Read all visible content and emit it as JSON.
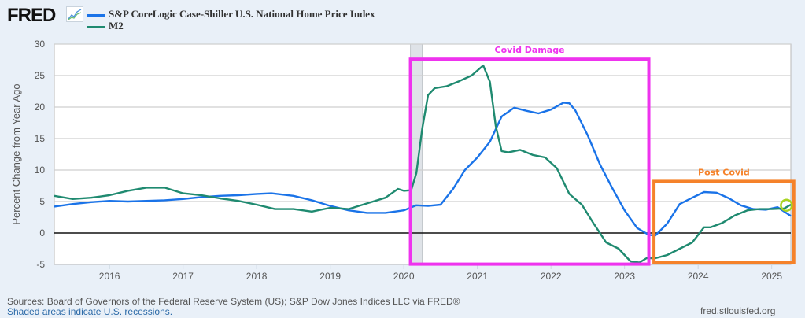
{
  "header": {
    "logo_text": "FRED",
    "logo_icon": "line-chart-icon"
  },
  "chart_data": {
    "type": "line",
    "title": "",
    "xlabel": "",
    "ylabel": "Percent Change from Year Ago",
    "ylim": [
      -5,
      30
    ],
    "xlim": [
      2015.25,
      2025.26
    ],
    "yticks": [
      "30",
      "25",
      "20",
      "15",
      "10",
      "5",
      "0",
      "-5"
    ],
    "ytick_values": [
      30,
      25,
      20,
      15,
      10,
      5,
      0,
      -5
    ],
    "xticks": [
      "2016",
      "2017",
      "2018",
      "2019",
      "2020",
      "2021",
      "2022",
      "2023",
      "2024",
      "2025"
    ],
    "xtick_values": [
      2016,
      2017,
      2018,
      2019,
      2020,
      2021,
      2022,
      2023,
      2024,
      2025
    ],
    "grid": true,
    "legend": "top-left",
    "recessions": [
      [
        2020.09,
        2020.25
      ]
    ],
    "series": [
      {
        "name": "S&P CoreLogic Case-Shiller U.S. National Home Price Index",
        "color": "#1a73e8",
        "x": [
          2015.25,
          2015.5,
          2015.75,
          2016.0,
          2016.25,
          2016.5,
          2016.75,
          2017.0,
          2017.25,
          2017.5,
          2017.75,
          2018.0,
          2018.2,
          2018.5,
          2018.75,
          2019.0,
          2019.25,
          2019.5,
          2019.75,
          2020.0,
          2020.17,
          2020.33,
          2020.5,
          2020.67,
          2020.83,
          2021.0,
          2021.17,
          2021.33,
          2021.5,
          2021.67,
          2021.83,
          2022.0,
          2022.17,
          2022.25,
          2022.33,
          2022.5,
          2022.67,
          2022.83,
          2023.0,
          2023.17,
          2023.33,
          2023.42,
          2023.58,
          2023.75,
          2023.92,
          2024.08,
          2024.25,
          2024.42,
          2024.58,
          2024.75,
          2024.92,
          2025.08,
          2025.26
        ],
        "values": [
          4.2,
          4.6,
          4.9,
          5.1,
          5.0,
          5.1,
          5.2,
          5.4,
          5.7,
          5.9,
          6.0,
          6.2,
          6.3,
          5.9,
          5.2,
          4.3,
          3.6,
          3.2,
          3.2,
          3.6,
          4.4,
          4.3,
          4.5,
          7.0,
          10.0,
          12.0,
          14.5,
          18.5,
          19.9,
          19.4,
          19.0,
          19.6,
          20.7,
          20.6,
          19.5,
          15.5,
          10.8,
          7.2,
          3.6,
          0.8,
          -0.3,
          -0.4,
          1.5,
          4.6,
          5.6,
          6.5,
          6.4,
          5.5,
          4.4,
          3.8,
          3.7,
          4.1,
          2.7
        ]
      },
      {
        "name": "M2",
        "color": "#1f8a70",
        "x": [
          2015.25,
          2015.5,
          2015.75,
          2016.0,
          2016.25,
          2016.5,
          2016.75,
          2017.0,
          2017.25,
          2017.5,
          2017.75,
          2018.0,
          2018.25,
          2018.5,
          2018.75,
          2019.0,
          2019.25,
          2019.5,
          2019.75,
          2019.92,
          2020.0,
          2020.1,
          2020.17,
          2020.25,
          2020.33,
          2020.42,
          2020.58,
          2020.75,
          2020.92,
          2021.08,
          2021.17,
          2021.25,
          2021.33,
          2021.42,
          2021.58,
          2021.75,
          2021.92,
          2022.08,
          2022.25,
          2022.42,
          2022.58,
          2022.75,
          2022.92,
          2023.08,
          2023.2,
          2023.3,
          2023.42,
          2023.58,
          2023.75,
          2023.92,
          2024.08,
          2024.17,
          2024.33,
          2024.5,
          2024.67,
          2024.83,
          2025.0,
          2025.17,
          2025.26
        ],
        "values": [
          5.9,
          5.4,
          5.6,
          6.0,
          6.7,
          7.2,
          7.2,
          6.3,
          6.0,
          5.5,
          5.1,
          4.5,
          3.8,
          3.8,
          3.4,
          4.0,
          3.8,
          4.7,
          5.6,
          7.0,
          6.7,
          6.8,
          9.5,
          16.5,
          21.9,
          23.0,
          23.3,
          24.1,
          25.0,
          26.6,
          24.0,
          17.0,
          13.0,
          12.8,
          13.2,
          12.4,
          12.0,
          10.3,
          6.2,
          4.5,
          1.5,
          -1.5,
          -2.5,
          -4.5,
          -4.7,
          -4.0,
          -4.0,
          -3.5,
          -2.5,
          -1.5,
          0.9,
          0.9,
          1.6,
          2.8,
          3.6,
          3.8,
          3.8,
          3.9,
          4.5
        ]
      }
    ],
    "annotations": [
      {
        "label": "Covid Damage",
        "color": "#ee33ee",
        "x_range": [
          2020.09,
          2023.33
        ],
        "y_range": [
          -4.95,
          27.6
        ]
      },
      {
        "label": "Post Covid",
        "color": "#f5822a",
        "x_range": [
          2023.4,
          2025.3
        ],
        "y_range": [
          -4.7,
          8.2
        ]
      },
      {
        "label": "",
        "color": "#a8d41f",
        "shape": "circle",
        "x": 2025.2,
        "y": 4.4
      }
    ]
  },
  "footer": {
    "sources": "Sources: Board of Governors of the Federal Reserve System (US); S&P Dow Jones Indices LLC via FRED®",
    "recession_note": "Shaded areas indicate U.S. recessions.",
    "site": "fred.stlouisfed.org"
  }
}
